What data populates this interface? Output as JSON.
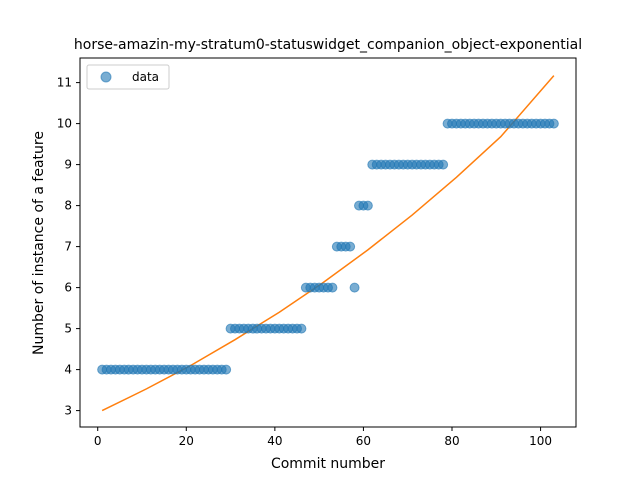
{
  "chart_data": {
    "type": "scatter",
    "title": "horse-amazin-my-stratum0-statuswidget_companion_object-exponential",
    "xlabel": "Commit number",
    "ylabel": "Number of instance of a feature",
    "xlim": [
      -4,
      108
    ],
    "ylim": [
      2.6,
      11.6
    ],
    "xticks": [
      0,
      20,
      40,
      60,
      80,
      100
    ],
    "yticks": [
      3,
      4,
      5,
      6,
      7,
      8,
      9,
      10,
      11
    ],
    "legend": {
      "placement": "top-left",
      "entries": [
        "data"
      ]
    },
    "grid": false,
    "colors": {
      "data": "#1f77b4",
      "fit": "#ff7f0e"
    },
    "series": [
      {
        "name": "data",
        "kind": "scatter",
        "x": [
          1,
          2,
          3,
          4,
          5,
          6,
          7,
          8,
          9,
          10,
          11,
          12,
          13,
          14,
          15,
          16,
          17,
          18,
          19,
          20,
          21,
          22,
          23,
          24,
          25,
          26,
          27,
          28,
          29,
          30,
          31,
          32,
          33,
          34,
          35,
          36,
          37,
          38,
          39,
          40,
          41,
          42,
          43,
          44,
          45,
          46,
          47,
          48,
          49,
          50,
          51,
          52,
          53,
          54,
          55,
          56,
          57,
          58,
          59,
          60,
          61,
          62,
          63,
          64,
          65,
          66,
          67,
          68,
          69,
          70,
          71,
          72,
          73,
          74,
          75,
          76,
          77,
          78,
          79,
          80,
          81,
          82,
          83,
          84,
          85,
          86,
          87,
          88,
          89,
          90,
          91,
          92,
          93,
          94,
          95,
          96,
          97,
          98,
          99,
          100,
          101,
          102,
          103
        ],
        "y": [
          4,
          4,
          4,
          4,
          4,
          4,
          4,
          4,
          4,
          4,
          4,
          4,
          4,
          4,
          4,
          4,
          4,
          4,
          4,
          4,
          4,
          4,
          4,
          4,
          4,
          4,
          4,
          4,
          4,
          5,
          5,
          5,
          5,
          5,
          5,
          5,
          5,
          5,
          5,
          5,
          5,
          5,
          5,
          5,
          5,
          5,
          6,
          6,
          6,
          6,
          6,
          6,
          6,
          7,
          7,
          7,
          7,
          6,
          8,
          8,
          8,
          9,
          9,
          9,
          9,
          9,
          9,
          9,
          9,
          9,
          9,
          9,
          9,
          9,
          9,
          9,
          9,
          9,
          10,
          10,
          10,
          10,
          10,
          10,
          10,
          10,
          10,
          10,
          10,
          10,
          10,
          10,
          10,
          10,
          10,
          10,
          10,
          10,
          10,
          10,
          10,
          10,
          10
        ]
      },
      {
        "kind": "line",
        "x": [
          1,
          11,
          21,
          31,
          41,
          51,
          61,
          71,
          81,
          91,
          103
        ],
        "y": [
          3.0,
          3.53,
          4.1,
          4.73,
          5.4,
          6.13,
          6.92,
          7.77,
          8.69,
          9.68,
          11.17
        ]
      }
    ]
  }
}
